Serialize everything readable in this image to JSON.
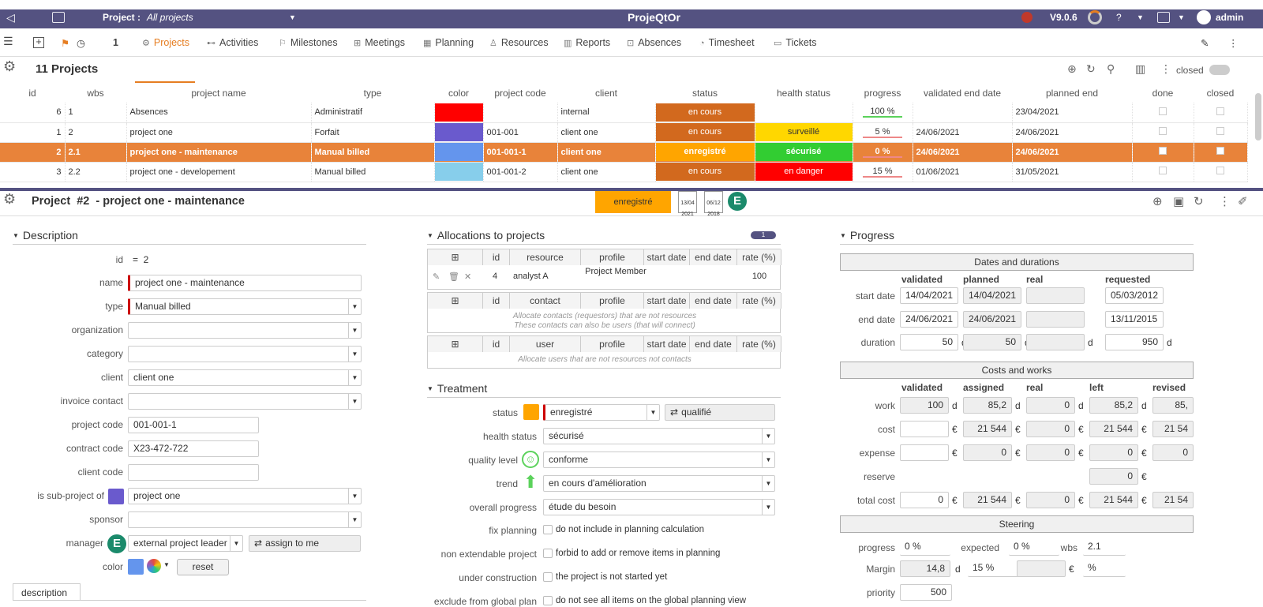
{
  "topbar": {
    "project_label": "Project :",
    "project_value": "All projects",
    "app_title": "ProjeQtOr",
    "version": "V9.0.6",
    "user": "admin"
  },
  "menu": {
    "count": "1",
    "items": [
      "Projects",
      "Activities",
      "Milestones",
      "Meetings",
      "Planning",
      "Resources",
      "Reports",
      "Absences",
      "Timesheet",
      "Tickets"
    ],
    "icons": [
      "gear-icon",
      "activity-icon",
      "milestone-icon",
      "meeting-icon",
      "planning-icon",
      "resource-icon",
      "report-icon",
      "absence-icon",
      "timesheet-icon",
      "ticket-icon"
    ]
  },
  "list": {
    "title": "11 Projects",
    "closed_label": "closed",
    "columns": [
      "id",
      "wbs",
      "project name",
      "type",
      "color",
      "project code",
      "client",
      "status",
      "health status",
      "progress",
      "validated end date",
      "planned end",
      "done",
      "closed"
    ],
    "rows": [
      {
        "id": "6",
        "wbs": "1",
        "name": "Absences",
        "type": "Administratif",
        "color": "#ff0000",
        "code": "",
        "client": "internal",
        "status": "en cours",
        "status_color": "#d2691e",
        "health": "",
        "health_color": "",
        "progress": "100 %",
        "validated_end": "",
        "planned_end": "23/04/2021"
      },
      {
        "id": "1",
        "wbs": "2",
        "name": "project one",
        "type": "Forfait",
        "color": "#6a5acd",
        "code": "001-001",
        "client": "client one",
        "status": "en cours",
        "status_color": "#d2691e",
        "health": "surveillé",
        "health_color": "#ffd700",
        "progress": "5 %",
        "validated_end": "24/06/2021",
        "planned_end": "24/06/2021"
      },
      {
        "id": "2",
        "wbs": "2.1",
        "name": "project one - maintenance",
        "type": "Manual billed",
        "color": "#6495ed",
        "code": "001-001-1",
        "client": "client one",
        "status": "enregistré",
        "status_color": "#ffa500",
        "health": "sécurisé",
        "health_color": "#32cd32",
        "progress": "0 %",
        "validated_end": "24/06/2021",
        "planned_end": "24/06/2021"
      },
      {
        "id": "3",
        "wbs": "2.2",
        "name": "project one - developement",
        "type": "Manual billed",
        "color": "#87ceeb",
        "code": "001-001-2",
        "client": "client one",
        "status": "en cours",
        "status_color": "#d2691e",
        "health": "en danger",
        "health_color": "#ff0000",
        "progress": "15 %",
        "validated_end": "01/06/2021",
        "planned_end": "31/05/2021"
      }
    ]
  },
  "detail": {
    "title": "Project  #2  - project one - maintenance",
    "status_badge": "enregistré",
    "date1": "13/04 2021",
    "date2": "06/12 2018",
    "avatar_letter": "E"
  },
  "description": {
    "header": "Description",
    "id_label": "id",
    "id_value": "=  2",
    "name_label": "name",
    "name_value": "project one - maintenance",
    "type_label": "type",
    "type_value": "Manual billed",
    "organization_label": "organization",
    "category_label": "category",
    "client_label": "client",
    "client_value": "client one",
    "invoice_label": "invoice contact",
    "project_code_label": "project code",
    "project_code_value": "001-001-1",
    "contract_code_label": "contract code",
    "contract_code_value": "X23-472-722",
    "client_code_label": "client code",
    "subproject_label": "is sub-project of",
    "subproject_value": "project one",
    "sponsor_label": "sponsor",
    "manager_label": "manager",
    "manager_value": "external project leader",
    "assign_label": "assign to me",
    "color_label": "color",
    "reset_label": "reset",
    "tab_description": "description"
  },
  "allocations": {
    "header": "Allocations to projects",
    "badge": "1",
    "res_cols": [
      "id",
      "resource",
      "profile",
      "start date",
      "end date",
      "rate (%)"
    ],
    "res_row": {
      "id": "4",
      "resource": "analyst A",
      "profile": "Project Member",
      "rate": "100"
    },
    "contact_cols": [
      "id",
      "contact",
      "profile",
      "start date",
      "end date",
      "rate (%)"
    ],
    "contact_note1": "Allocate contacts (requestors) that are not resources",
    "contact_note2": "These contacts can also be users (that will connect)",
    "user_cols": [
      "id",
      "user",
      "profile",
      "start date",
      "end date",
      "rate (%)"
    ],
    "user_note": "Allocate users that are not resources not contacts"
  },
  "treatment": {
    "header": "Treatment",
    "status_label": "status",
    "status_value": "enregistré",
    "next_status": "qualifié",
    "health_label": "health status",
    "health_value": "sécurisé",
    "quality_label": "quality level",
    "quality_value": "conforme",
    "trend_label": "trend",
    "trend_value": "en cours d'amélioration",
    "overall_label": "overall progress",
    "overall_value": "étude du besoin",
    "fix_label": "fix planning",
    "fix_text": "do not include in planning calculation",
    "nonext_label": "non extendable project",
    "nonext_text": "forbid to add or remove items in planning",
    "under_label": "under construction",
    "under_text": "the project is not started yet",
    "exclude_label": "exclude from global plan",
    "exclude_text": "do not see all items on the global planning view"
  },
  "progress": {
    "header": "Progress",
    "dates_header": "Dates and durations",
    "cols": [
      "validated",
      "planned",
      "real",
      "requested"
    ],
    "start_label": "start date",
    "start": [
      "14/04/2021",
      "14/04/2021",
      "",
      "05/03/2012"
    ],
    "end_label": "end date",
    "end": [
      "24/06/2021",
      "24/06/2021",
      "",
      "13/11/2015"
    ],
    "duration_label": "duration",
    "duration": [
      "50",
      "50",
      "",
      "950"
    ],
    "d": "d",
    "costs_header": "Costs and works",
    "cost_cols": [
      "validated",
      "assigned",
      "real",
      "left",
      "revised"
    ],
    "work_label": "work",
    "work": [
      "100",
      "85,2",
      "0",
      "85,2",
      "85,"
    ],
    "cost_label": "cost",
    "cost": [
      "",
      "21 544",
      "0",
      "21 544",
      "21 54"
    ],
    "expense_label": "expense",
    "expense": [
      "",
      "0",
      "0",
      "0",
      "0"
    ],
    "reserve_label": "reserve",
    "reserve": "0",
    "total_label": "total cost",
    "total": [
      "0",
      "21 544",
      "0",
      "21 544",
      "21 54"
    ],
    "euro": "€",
    "steering_header": "Steering",
    "progress_label": "progress",
    "progress_value": "0 %",
    "expected_label": "expected",
    "expected_value": "0 %",
    "wbs_label": "wbs",
    "wbs_value": "2.1",
    "margin_label": "Margin",
    "margin_value": "14,8",
    "margin_pct": "15 %",
    "margin_pct2": "%",
    "priority_label": "priority",
    "priority_value": "500"
  }
}
